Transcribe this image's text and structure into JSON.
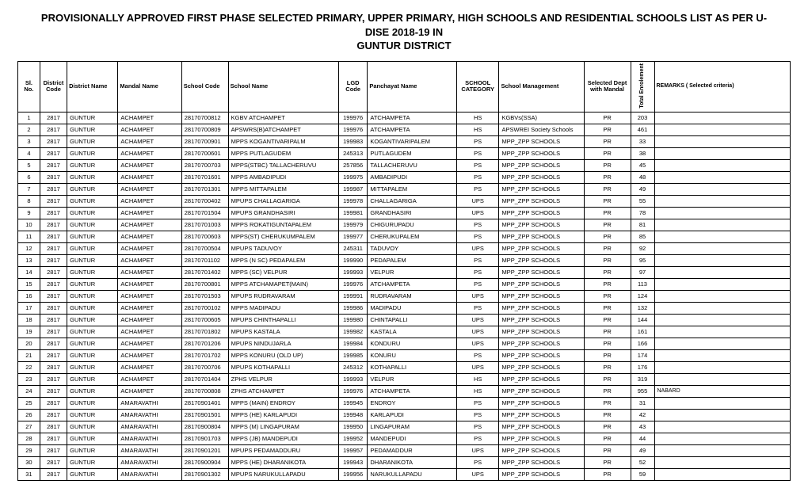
{
  "title_line1": "PROVISIONALLY APPROVED FIRST PHASE SELECTED PRIMARY, UPPER PRIMARY, HIGH SCHOOLS AND RESIDENTIAL SCHOOLS LIST AS PER U-DISE 2018-19 IN",
  "title_line2": "GUNTUR DISTRICT",
  "columns": [
    "Sl. No.",
    "District Code",
    "District Name",
    "Mandal Name",
    "School Code",
    "School Name",
    "LGD Code",
    "Panchayat Name",
    "SCHOOL CATEGORY",
    "School Management",
    "Selected Dept with Mandal",
    "Total Enrolement",
    "REMARKS ( Selected criteria)"
  ],
  "rows": [
    [
      "1",
      "2817",
      "GUNTUR",
      "ACHAMPET",
      "28170700812",
      "KGBV ATCHAMPET",
      "199976",
      "ATCHAMPETA",
      "HS",
      "KGBVs(SSA)",
      "PR",
      "203",
      ""
    ],
    [
      "2",
      "2817",
      "GUNTUR",
      "ACHAMPET",
      "28170700809",
      "APSWRS(B)ATCHAMPET",
      "199976",
      "ATCHAMPETA",
      "HS",
      "APSWREI Society Schools",
      "PR",
      "461",
      ""
    ],
    [
      "3",
      "2817",
      "GUNTUR",
      "ACHAMPET",
      "28170700901",
      "MPPS KOGANTIVARIPALM",
      "199983",
      "KOGANTIVARIPALEM",
      "PS",
      "MPP_ZPP SCHOOLS",
      "PR",
      "33",
      ""
    ],
    [
      "4",
      "2817",
      "GUNTUR",
      "ACHAMPET",
      "28170700601",
      "MPPS PUTLAGUDEM",
      "245313",
      "PUTLAGUDEM",
      "PS",
      "MPP_ZPP SCHOOLS",
      "PR",
      "38",
      ""
    ],
    [
      "5",
      "2817",
      "GUNTUR",
      "ACHAMPET",
      "28170700703",
      "MPPS(STBC) TALLACHERUVU",
      "257856",
      "TALLACHERUVU",
      "PS",
      "MPP_ZPP SCHOOLS",
      "PR",
      "45",
      ""
    ],
    [
      "6",
      "2817",
      "GUNTUR",
      "ACHAMPET",
      "28170701601",
      "MPPS AMBADIPUDI",
      "199975",
      "AMBADIPUDI",
      "PS",
      "MPP_ZPP SCHOOLS",
      "PR",
      "48",
      ""
    ],
    [
      "7",
      "2817",
      "GUNTUR",
      "ACHAMPET",
      "28170701301",
      "MPPS MITTAPALEM",
      "199987",
      "MITTAPALEM",
      "PS",
      "MPP_ZPP SCHOOLS",
      "PR",
      "49",
      ""
    ],
    [
      "8",
      "2817",
      "GUNTUR",
      "ACHAMPET",
      "28170700402",
      "MPUPS CHALLAGARIGA",
      "199978",
      "CHALLAGARIGA",
      "UPS",
      "MPP_ZPP SCHOOLS",
      "PR",
      "55",
      ""
    ],
    [
      "9",
      "2817",
      "GUNTUR",
      "ACHAMPET",
      "28170701504",
      "MPUPS GRANDHASIRI",
      "199981",
      "GRANDHASIRI",
      "UPS",
      "MPP_ZPP SCHOOLS",
      "PR",
      "78",
      ""
    ],
    [
      "10",
      "2817",
      "GUNTUR",
      "ACHAMPET",
      "28170701003",
      "MPPS ROKATIGUNTAPALEM",
      "199979",
      "CHIGURUPADU",
      "PS",
      "MPP_ZPP SCHOOLS",
      "PR",
      "81",
      ""
    ],
    [
      "11",
      "2817",
      "GUNTUR",
      "ACHAMPET",
      "28170700603",
      "MPPS(ST) CHERUKUMPALEM",
      "199977",
      "CHERUKUPALEM",
      "PS",
      "MPP_ZPP SCHOOLS",
      "PR",
      "85",
      ""
    ],
    [
      "12",
      "2817",
      "GUNTUR",
      "ACHAMPET",
      "28170700504",
      "MPUPS TADUVOY",
      "245311",
      "TADUVOY",
      "UPS",
      "MPP_ZPP SCHOOLS",
      "PR",
      "92",
      ""
    ],
    [
      "13",
      "2817",
      "GUNTUR",
      "ACHAMPET",
      "28170701102",
      "MPPS (N SC) PEDAPALEM",
      "199990",
      "PEDAPALEM",
      "PS",
      "MPP_ZPP SCHOOLS",
      "PR",
      "95",
      ""
    ],
    [
      "14",
      "2817",
      "GUNTUR",
      "ACHAMPET",
      "28170701402",
      "MPPS (SC) VELPUR",
      "199993",
      "VELPUR",
      "PS",
      "MPP_ZPP SCHOOLS",
      "PR",
      "97",
      ""
    ],
    [
      "15",
      "2817",
      "GUNTUR",
      "ACHAMPET",
      "28170700801",
      "MPPS ATCHAMAPET(MAIN)",
      "199976",
      "ATCHAMPETA",
      "PS",
      "MPP_ZPP SCHOOLS",
      "PR",
      "113",
      ""
    ],
    [
      "16",
      "2817",
      "GUNTUR",
      "ACHAMPET",
      "28170701503",
      "MPUPS RUDRAVARAM",
      "199991",
      "RUDRAVARAM",
      "UPS",
      "MPP_ZPP SCHOOLS",
      "PR",
      "124",
      ""
    ],
    [
      "17",
      "2817",
      "GUNTUR",
      "ACHAMPET",
      "28170700102",
      "MPPS MADIPADU",
      "199986",
      "MADIPADU",
      "PS",
      "MPP_ZPP SCHOOLS",
      "PR",
      "132",
      ""
    ],
    [
      "18",
      "2817",
      "GUNTUR",
      "ACHAMPET",
      "28170700605",
      "MPUPS CHINTHAPALLI",
      "199980",
      "CHINTAPALLI",
      "UPS",
      "MPP_ZPP SCHOOLS",
      "PR",
      "144",
      ""
    ],
    [
      "19",
      "2817",
      "GUNTUR",
      "ACHAMPET",
      "28170701802",
      "MPUPS  KASTALA",
      "199982",
      "KASTALA",
      "UPS",
      "MPP_ZPP SCHOOLS",
      "PR",
      "161",
      ""
    ],
    [
      "20",
      "2817",
      "GUNTUR",
      "ACHAMPET",
      "28170701206",
      "MPUPS NINDUJARLA",
      "199984",
      "KONDURU",
      "UPS",
      "MPP_ZPP SCHOOLS",
      "PR",
      "166",
      ""
    ],
    [
      "21",
      "2817",
      "GUNTUR",
      "ACHAMPET",
      "28170701702",
      "MPPS KONURU (OLD UP)",
      "199985",
      "KONURU",
      "PS",
      "MPP_ZPP SCHOOLS",
      "PR",
      "174",
      ""
    ],
    [
      "22",
      "2817",
      "GUNTUR",
      "ACHAMPET",
      "28170700706",
      "MPUPS KOTHAPALLI",
      "245312",
      "KOTHAPALLI",
      "UPS",
      "MPP_ZPP SCHOOLS",
      "PR",
      "176",
      ""
    ],
    [
      "23",
      "2817",
      "GUNTUR",
      "ACHAMPET",
      "28170701404",
      "ZPHS VELPUR",
      "199993",
      "VELPUR",
      "HS",
      "MPP_ZPP SCHOOLS",
      "PR",
      "319",
      ""
    ],
    [
      "24",
      "2817",
      "GUNTUR",
      "ACHAMPET",
      "28170700808",
      "ZPHS ATCHAMPET",
      "199976",
      "ATCHAMPETA",
      "HS",
      "MPP_ZPP SCHOOLS",
      "PR",
      "955",
      "NABARD"
    ],
    [
      "25",
      "2817",
      "GUNTUR",
      "AMARAVATHI",
      "28170901401",
      "MPPS (MAIN) ENDROY",
      "199945",
      "ENDROY",
      "PS",
      "MPP_ZPP SCHOOLS",
      "PR",
      "31",
      ""
    ],
    [
      "26",
      "2817",
      "GUNTUR",
      "AMARAVATHI",
      "28170901501",
      "MPPS (HE) KARLAPUDI",
      "199948",
      "KARLAPUDI",
      "PS",
      "MPP_ZPP SCHOOLS",
      "PR",
      "42",
      ""
    ],
    [
      "27",
      "2817",
      "GUNTUR",
      "AMARAVATHI",
      "28170900804",
      "MPPS (M) LINGAPURAM",
      "199950",
      "LINGAPURAM",
      "PS",
      "MPP_ZPP SCHOOLS",
      "PR",
      "43",
      ""
    ],
    [
      "28",
      "2817",
      "GUNTUR",
      "AMARAVATHI",
      "28170901703",
      "MPPS (JB) MANDEPUDI",
      "199952",
      "MANDEPUDI",
      "PS",
      "MPP_ZPP SCHOOLS",
      "PR",
      "44",
      ""
    ],
    [
      "29",
      "2817",
      "GUNTUR",
      "AMARAVATHI",
      "28170901201",
      "MPUPS PEDAMADDURU",
      "199957",
      "PEDAMADDUR",
      "UPS",
      "MPP_ZPP SCHOOLS",
      "PR",
      "49",
      ""
    ],
    [
      "30",
      "2817",
      "GUNTUR",
      "AMARAVATHI",
      "28170900904",
      "MPPS (HE) DHARANIKOTA",
      "199943",
      "DHARANIKOTA",
      "PS",
      "MPP_ZPP SCHOOLS",
      "PR",
      "52",
      ""
    ],
    [
      "31",
      "2817",
      "GUNTUR",
      "AMARAVATHI",
      "28170901302",
      "MPUPS NARUKULLAPADU",
      "199956",
      "NARUKULLAPADU",
      "UPS",
      "MPP_ZPP SCHOOLS",
      "PR",
      "59",
      ""
    ]
  ]
}
